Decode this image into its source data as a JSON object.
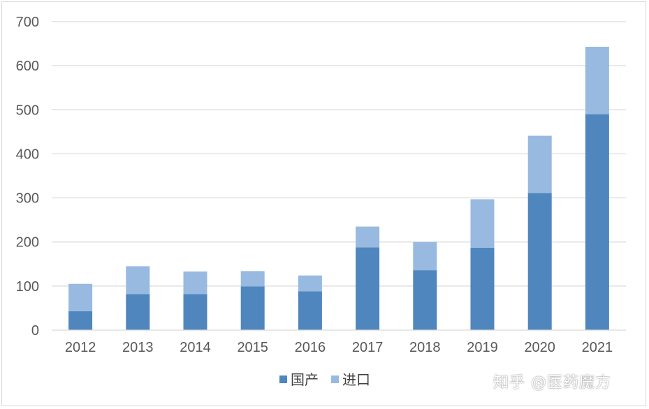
{
  "chart_data": {
    "type": "bar",
    "stacked": true,
    "categories": [
      "2012",
      "2013",
      "2014",
      "2015",
      "2016",
      "2017",
      "2018",
      "2019",
      "2020",
      "2021"
    ],
    "series": [
      {
        "name": "国产",
        "color": "#4f86bd",
        "values": [
          43,
          82,
          82,
          99,
          88,
          188,
          136,
          187,
          311,
          490
        ]
      },
      {
        "name": "进口",
        "color": "#98b9e0",
        "values": [
          62,
          63,
          51,
          35,
          36,
          47,
          64,
          110,
          130,
          153
        ]
      }
    ],
    "ylim": [
      0,
      700
    ],
    "yticks": [
      0,
      100,
      200,
      300,
      400,
      500,
      600,
      700
    ],
    "grid": true,
    "legend_position": "bottom"
  },
  "watermark": "知乎 @医药魔方"
}
